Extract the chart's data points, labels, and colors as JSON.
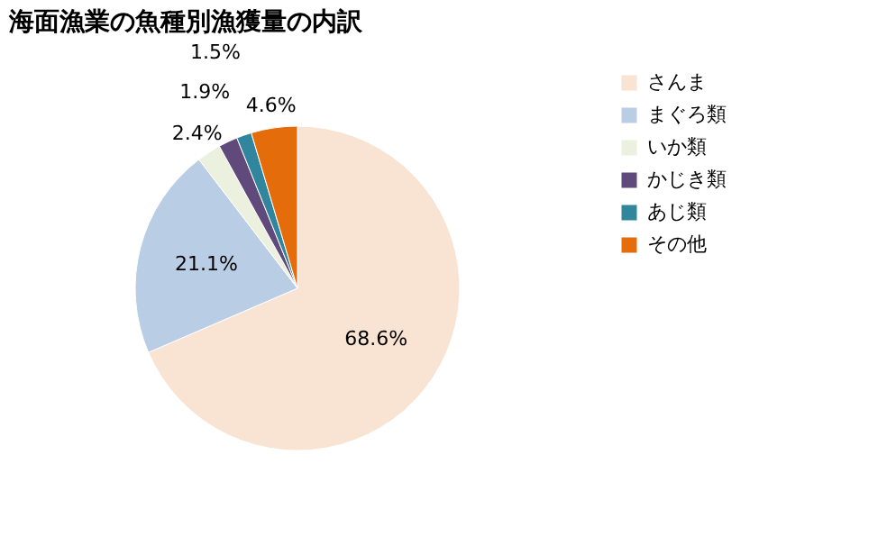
{
  "chart_data": {
    "type": "pie",
    "title": "海面漁業の魚種別漁獲量の内訳",
    "categories": [
      "さんま",
      "まぐろ類",
      "いか類",
      "かじき類",
      "あじ類",
      "その他"
    ],
    "values": [
      68.6,
      21.1,
      2.4,
      1.9,
      1.5,
      4.6
    ],
    "colors": [
      "#f9e3d3",
      "#b9cde5",
      "#ebf1de",
      "#604a7b",
      "#31859c",
      "#e46c0a"
    ],
    "value_labels": [
      "68.6%",
      "21.1%",
      "2.4%",
      "1.9%",
      "1.5%",
      "4.6%"
    ],
    "legend": "right"
  }
}
